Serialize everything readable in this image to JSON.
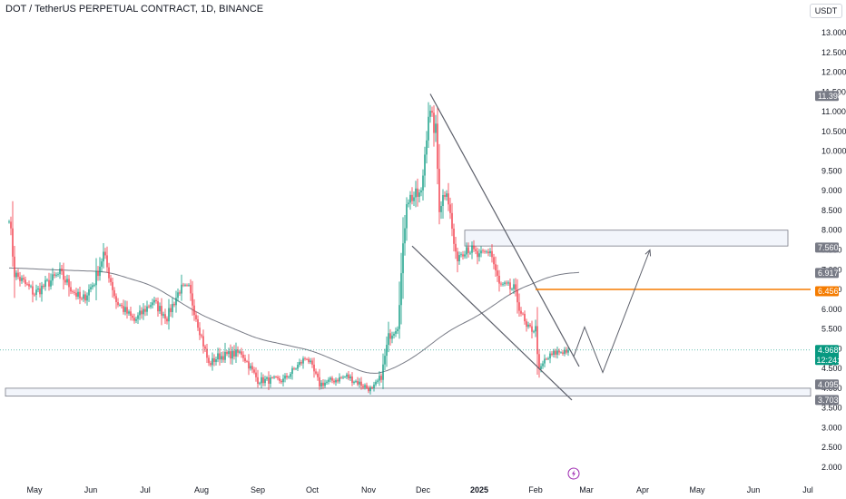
{
  "header": {
    "title": "DOT / TetherUS PERPETUAL CONTRACT, 1D, BINANCE",
    "currency_button": "USDT"
  },
  "colors": {
    "up": "#089981",
    "down": "#f23645",
    "ma": "#787b86",
    "pattern": "#5d606b",
    "orange": "#f57c00",
    "zone_fill": "#f0f3fa",
    "zone_border": "#787b86",
    "price_line": "#089981"
  },
  "chart_data": {
    "type": "candlestick",
    "ylim": [
      2.0,
      13.0
    ],
    "scale": "linear",
    "grid": false,
    "y_ticks": [
      2.0,
      2.5,
      3.0,
      3.5,
      4.0,
      4.5,
      5.0,
      5.5,
      6.0,
      6.5,
      7.0,
      7.5,
      8.0,
      8.5,
      9.0,
      9.5,
      10.0,
      10.5,
      11.0,
      11.5,
      12.0,
      12.5,
      13.0
    ],
    "y_tick_labels": [
      "2.000",
      "2.500",
      "3.000",
      "3.500",
      "4.000",
      "4.500",
      "5.000",
      "5.500",
      "6.000",
      "6.500",
      "7.000",
      "7.500",
      "8.000",
      "8.500",
      "9.000",
      "9.500",
      "10.000",
      "10.500",
      "11.000",
      "11.500",
      "12.000",
      "12.500",
      "13.000"
    ],
    "x_ticks": [
      "May",
      "Jun",
      "Jul",
      "Aug",
      "Sep",
      "Oct",
      "Nov",
      "Dec",
      "2025",
      "Feb",
      "Mar",
      "Apr",
      "May",
      "Jun",
      "Jul"
    ],
    "series": [
      {
        "kind": "ohlc_path",
        "anchors": [
          [
            "2024-04-17",
            8.4
          ],
          [
            "2024-04-20",
            6.9
          ],
          [
            "2024-05-01",
            6.4
          ],
          [
            "2024-05-15",
            6.9
          ],
          [
            "2024-05-27",
            6.2
          ],
          [
            "2024-06-03",
            6.7
          ],
          [
            "2024-06-08",
            7.4
          ],
          [
            "2024-06-15",
            6.2
          ],
          [
            "2024-06-25",
            5.7
          ],
          [
            "2024-07-05",
            6.2
          ],
          [
            "2024-07-13",
            5.8
          ],
          [
            "2024-07-20",
            6.5
          ],
          [
            "2024-07-25",
            6.5
          ],
          [
            "2024-08-05",
            4.6
          ],
          [
            "2024-08-10",
            4.8
          ],
          [
            "2024-08-23",
            4.9
          ],
          [
            "2024-09-01",
            4.2
          ],
          [
            "2024-09-15",
            4.2
          ],
          [
            "2024-09-28",
            4.8
          ],
          [
            "2024-10-05",
            4.1
          ],
          [
            "2024-10-20",
            4.3
          ],
          [
            "2024-11-03",
            3.95
          ],
          [
            "2024-11-08",
            4.3
          ],
          [
            "2024-11-12",
            5.3
          ],
          [
            "2024-11-17",
            5.6
          ],
          [
            "2024-11-22",
            8.8
          ],
          [
            "2024-11-30",
            8.9
          ],
          [
            "2024-12-04",
            11.0
          ],
          [
            "2024-12-08",
            10.5
          ],
          [
            "2024-12-10",
            8.6
          ],
          [
            "2024-12-14",
            9.1
          ],
          [
            "2024-12-19",
            7.3
          ],
          [
            "2024-12-25",
            7.6
          ],
          [
            "2025-01-01",
            7.3
          ],
          [
            "2025-01-07",
            7.5
          ],
          [
            "2025-01-12",
            6.6
          ],
          [
            "2025-01-20",
            6.5
          ],
          [
            "2025-01-27",
            5.5
          ],
          [
            "2025-02-01",
            5.5
          ],
          [
            "2025-02-03",
            4.4
          ],
          [
            "2025-02-06",
            4.7
          ],
          [
            "2025-02-12",
            4.9
          ],
          [
            "2025-02-19",
            4.97
          ]
        ]
      },
      {
        "kind": "moving_average",
        "points": [
          [
            "2024-04-17",
            7.05
          ],
          [
            "2024-05-10",
            7.0
          ],
          [
            "2024-06-10",
            6.95
          ],
          [
            "2024-07-05",
            6.6
          ],
          [
            "2024-08-01",
            5.85
          ],
          [
            "2024-09-01",
            5.25
          ],
          [
            "2024-10-01",
            4.95
          ],
          [
            "2024-11-01",
            4.35
          ],
          [
            "2024-11-10",
            4.4
          ],
          [
            "2024-11-25",
            4.75
          ],
          [
            "2024-12-15",
            5.45
          ],
          [
            "2025-01-01",
            5.85
          ],
          [
            "2025-01-20",
            6.45
          ],
          [
            "2025-02-10",
            6.85
          ],
          [
            "2025-02-25",
            6.95
          ]
        ]
      }
    ],
    "drawings": {
      "wedge_upper": [
        [
          "2024-12-05",
          11.45
        ],
        [
          "2025-02-25",
          4.55
        ]
      ],
      "wedge_lower": [
        [
          "2024-11-25",
          7.6
        ],
        [
          "2025-02-21",
          3.7
        ]
      ],
      "resistance_zone": {
        "from": "2024-12-24",
        "to": "2025-06-20",
        "top": 8.0,
        "bottom": 7.6
      },
      "support_zone": {
        "from": "2024-04-15",
        "to": "2025-07-31",
        "top": 4.0,
        "bottom": 3.8
      },
      "level": {
        "from": "2025-02-01",
        "to": "2025-07-31",
        "value": 6.5
      },
      "projection_path": [
        [
          "2025-02-22",
          4.8
        ],
        [
          "2025-02-28",
          5.55
        ],
        [
          "2025-03-10",
          4.4
        ],
        [
          "2025-04-05",
          7.5
        ]
      ]
    },
    "price_tags": [
      {
        "value": 11.398,
        "label": "11.398",
        "color": "#787b86"
      },
      {
        "value": 7.56,
        "label": "7.560",
        "color": "#787b86"
      },
      {
        "value": 6.917,
        "label": "6.917",
        "color": "#787b86"
      },
      {
        "value": 6.456,
        "label": "6.456",
        "color": "#f57c00"
      },
      {
        "value": 4.968,
        "label": "4.968",
        "sub": "12:24:04",
        "color": "#089981"
      },
      {
        "value": 4.095,
        "label": "4.095",
        "color": "#787b86"
      },
      {
        "value": 3.703,
        "label": "3.703",
        "color": "#787b86"
      }
    ],
    "last_price": 4.968,
    "events": [
      {
        "date": "2025-02-22",
        "icon": "lightning-icon"
      }
    ]
  }
}
